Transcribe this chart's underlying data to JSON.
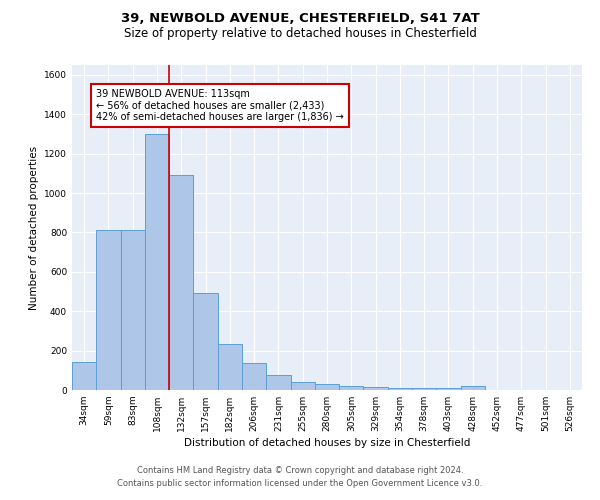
{
  "title": "39, NEWBOLD AVENUE, CHESTERFIELD, S41 7AT",
  "subtitle": "Size of property relative to detached houses in Chesterfield",
  "xlabel": "Distribution of detached houses by size in Chesterfield",
  "ylabel": "Number of detached properties",
  "categories": [
    "34sqm",
    "59sqm",
    "83sqm",
    "108sqm",
    "132sqm",
    "157sqm",
    "182sqm",
    "206sqm",
    "231sqm",
    "255sqm",
    "280sqm",
    "305sqm",
    "329sqm",
    "354sqm",
    "378sqm",
    "403sqm",
    "428sqm",
    "452sqm",
    "477sqm",
    "501sqm",
    "526sqm"
  ],
  "values": [
    140,
    810,
    810,
    1300,
    1090,
    490,
    235,
    135,
    75,
    40,
    30,
    20,
    15,
    12,
    10,
    8,
    20,
    0,
    0,
    0,
    0
  ],
  "bar_color": "#aec6e8",
  "bar_edge_color": "#5a9fd4",
  "marker_label": "39 NEWBOLD AVENUE: 113sqm",
  "annotation_line1": "← 56% of detached houses are smaller (2,433)",
  "annotation_line2": "42% of semi-detached houses are larger (1,836) →",
  "annotation_box_color": "#ffffff",
  "annotation_box_edge": "#cc0000",
  "vline_color": "#cc0000",
  "ylim": [
    0,
    1650
  ],
  "yticks": [
    0,
    200,
    400,
    600,
    800,
    1000,
    1200,
    1400,
    1600
  ],
  "bg_color": "#e8eef8",
  "footer_line1": "Contains HM Land Registry data © Crown copyright and database right 2024.",
  "footer_line2": "Contains public sector information licensed under the Open Government Licence v3.0.",
  "title_fontsize": 9.5,
  "subtitle_fontsize": 8.5,
  "label_fontsize": 7.5,
  "tick_fontsize": 6.5,
  "footer_fontsize": 6,
  "annotation_fontsize": 7
}
